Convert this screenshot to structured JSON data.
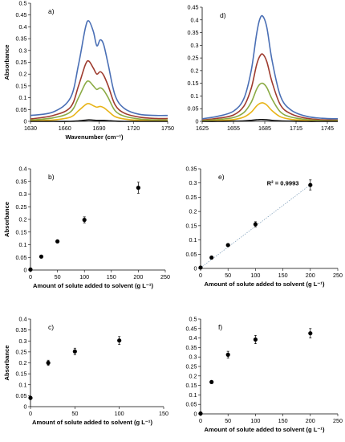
{
  "chart_data": [
    {
      "id": "a",
      "type": "line",
      "panel_label": "a)",
      "xlabel": "Wavenumber (cm⁻¹)",
      "ylabel": "Absorbance",
      "xlim": [
        1630,
        1750
      ],
      "ylim": [
        0,
        0.5
      ],
      "xticks": [
        1630,
        1660,
        1690,
        1720,
        1750
      ],
      "yticks": [
        0,
        0.05,
        0.1,
        0.15,
        0.2,
        0.25,
        0.3,
        0.35,
        0.4,
        0.45,
        0.5
      ],
      "grid": false,
      "x": [
        1630,
        1650,
        1665,
        1672,
        1678,
        1681,
        1685,
        1688,
        1691,
        1694,
        1698,
        1704,
        1712,
        1725,
        1740,
        1750
      ],
      "series": [
        {
          "color": "#4a6fb5",
          "values": [
            0.025,
            0.04,
            0.1,
            0.24,
            0.395,
            0.425,
            0.38,
            0.32,
            0.345,
            0.325,
            0.24,
            0.11,
            0.055,
            0.03,
            0.025,
            0.025
          ]
        },
        {
          "color": "#9e3b2e",
          "values": [
            0.01,
            0.025,
            0.06,
            0.15,
            0.24,
            0.255,
            0.225,
            0.2,
            0.21,
            0.195,
            0.15,
            0.07,
            0.035,
            0.018,
            0.012,
            0.012
          ]
        },
        {
          "color": "#8bab45",
          "values": [
            0.005,
            0.015,
            0.04,
            0.1,
            0.16,
            0.17,
            0.15,
            0.135,
            0.142,
            0.132,
            0.1,
            0.045,
            0.022,
            0.01,
            0.006,
            0.006
          ]
        },
        {
          "color": "#e8b418",
          "values": [
            0.002,
            0.006,
            0.018,
            0.045,
            0.07,
            0.075,
            0.066,
            0.06,
            0.063,
            0.058,
            0.043,
            0.02,
            0.01,
            0.004,
            0.002,
            0.002
          ]
        },
        {
          "color": "#111111",
          "values": [
            0,
            0,
            0,
            0.002,
            0.005,
            0.006,
            0.005,
            0.004,
            0.004,
            0.004,
            0.003,
            0.001,
            0,
            0,
            0,
            0
          ]
        }
      ]
    },
    {
      "id": "d",
      "type": "line",
      "panel_label": "d)",
      "xlabel": "",
      "ylabel": "",
      "xlim": [
        1625,
        1755
      ],
      "ylim": [
        0,
        0.45
      ],
      "xticks": [
        1625,
        1655,
        1685,
        1715,
        1745
      ],
      "yticks": [
        0,
        0.05,
        0.1,
        0.15,
        0.2,
        0.25,
        0.3,
        0.35,
        0.4,
        0.45
      ],
      "grid": false,
      "x": [
        1625,
        1640,
        1655,
        1665,
        1672,
        1677,
        1680,
        1683,
        1687,
        1692,
        1700,
        1710,
        1725,
        1740,
        1755
      ],
      "series": [
        {
          "color": "#4a6fb5",
          "values": [
            0.01,
            0.02,
            0.04,
            0.09,
            0.2,
            0.34,
            0.4,
            0.415,
            0.37,
            0.24,
            0.1,
            0.045,
            0.02,
            0.012,
            0.01
          ]
        },
        {
          "color": "#9e3b2e",
          "values": [
            0.005,
            0.012,
            0.025,
            0.06,
            0.13,
            0.22,
            0.255,
            0.265,
            0.235,
            0.155,
            0.065,
            0.03,
            0.012,
            0.006,
            0.005
          ]
        },
        {
          "color": "#8bab45",
          "values": [
            0.003,
            0.007,
            0.015,
            0.035,
            0.075,
            0.125,
            0.145,
            0.15,
            0.133,
            0.088,
            0.037,
            0.017,
            0.007,
            0.003,
            0.003
          ]
        },
        {
          "color": "#e8b418",
          "values": [
            0.001,
            0.003,
            0.007,
            0.017,
            0.036,
            0.06,
            0.07,
            0.073,
            0.064,
            0.042,
            0.018,
            0.008,
            0.003,
            0.001,
            0.001
          ]
        },
        {
          "color": "#111111",
          "values": [
            0,
            0,
            0.001,
            0.002,
            0.004,
            0.006,
            0.007,
            0.007,
            0.006,
            0.004,
            0.002,
            0.001,
            0,
            0,
            0
          ]
        }
      ]
    },
    {
      "id": "b",
      "type": "scatter",
      "panel_label": "b)",
      "xlabel": "Amount of solute added to solvent (g L⁻¹)",
      "ylabel": "Absorbance",
      "xlim": [
        0,
        250
      ],
      "ylim": [
        0,
        0.4
      ],
      "xticks": [
        0,
        50,
        100,
        150,
        200,
        250
      ],
      "yticks": [
        0,
        0.05,
        0.1,
        0.15,
        0.2,
        0.25,
        0.3,
        0.35,
        0.4
      ],
      "grid": false,
      "points": [
        {
          "x": 0,
          "y": 0.002,
          "err": 0
        },
        {
          "x": 20,
          "y": 0.053,
          "err": 0
        },
        {
          "x": 50,
          "y": 0.113,
          "err": 0
        },
        {
          "x": 100,
          "y": 0.198,
          "err": 0.012
        },
        {
          "x": 200,
          "y": 0.325,
          "err": 0.022
        }
      ]
    },
    {
      "id": "e",
      "type": "scatter",
      "panel_label": "e)",
      "xlabel": "Amount of solute added to solvent (g L⁻¹)",
      "ylabel": "",
      "xlim": [
        0,
        250
      ],
      "ylim": [
        0,
        0.35
      ],
      "xticks": [
        0,
        50,
        100,
        150,
        200,
        250
      ],
      "yticks": [
        0,
        0.05,
        0.1,
        0.15,
        0.2,
        0.25,
        0.3,
        0.35
      ],
      "grid": false,
      "annotation": "R² = 0.9993",
      "trendline": [
        [
          0,
          0.002
        ],
        [
          200,
          0.294
        ]
      ],
      "points": [
        {
          "x": 0,
          "y": 0.003,
          "err": 0
        },
        {
          "x": 20,
          "y": 0.038,
          "err": 0
        },
        {
          "x": 50,
          "y": 0.082,
          "err": 0
        },
        {
          "x": 100,
          "y": 0.155,
          "err": 0.009
        },
        {
          "x": 200,
          "y": 0.293,
          "err": 0.018
        }
      ]
    },
    {
      "id": "c",
      "type": "scatter",
      "panel_label": "c)",
      "xlabel": "Amount of solute added to solvent (g L⁻¹)",
      "ylabel": "Absorbance",
      "xlim": [
        0,
        150
      ],
      "ylim": [
        0,
        0.4
      ],
      "xticks": [
        0,
        50,
        100,
        150
      ],
      "yticks": [
        0,
        0.05,
        0.1,
        0.15,
        0.2,
        0.25,
        0.3,
        0.35,
        0.4
      ],
      "grid": false,
      "points": [
        {
          "x": 0,
          "y": 0.04,
          "err": 0
        },
        {
          "x": 20,
          "y": 0.2,
          "err": 0.012
        },
        {
          "x": 50,
          "y": 0.252,
          "err": 0.015
        },
        {
          "x": 100,
          "y": 0.302,
          "err": 0.018
        }
      ]
    },
    {
      "id": "f",
      "type": "scatter",
      "panel_label": "f)",
      "xlabel": "Amount of solute added to solvent (g L⁻¹)",
      "ylabel": "",
      "xlim": [
        0,
        250
      ],
      "ylim": [
        0,
        0.5
      ],
      "xticks": [
        0,
        50,
        100,
        150,
        200,
        250
      ],
      "yticks": [
        0,
        0.05,
        0.1,
        0.15,
        0.2,
        0.25,
        0.3,
        0.35,
        0.4,
        0.45,
        0.5
      ],
      "grid": false,
      "points": [
        {
          "x": 0,
          "y": 0.002,
          "err": 0
        },
        {
          "x": 20,
          "y": 0.168,
          "err": 0
        },
        {
          "x": 50,
          "y": 0.312,
          "err": 0.018
        },
        {
          "x": 100,
          "y": 0.392,
          "err": 0.022
        },
        {
          "x": 200,
          "y": 0.425,
          "err": 0.025
        }
      ]
    }
  ]
}
